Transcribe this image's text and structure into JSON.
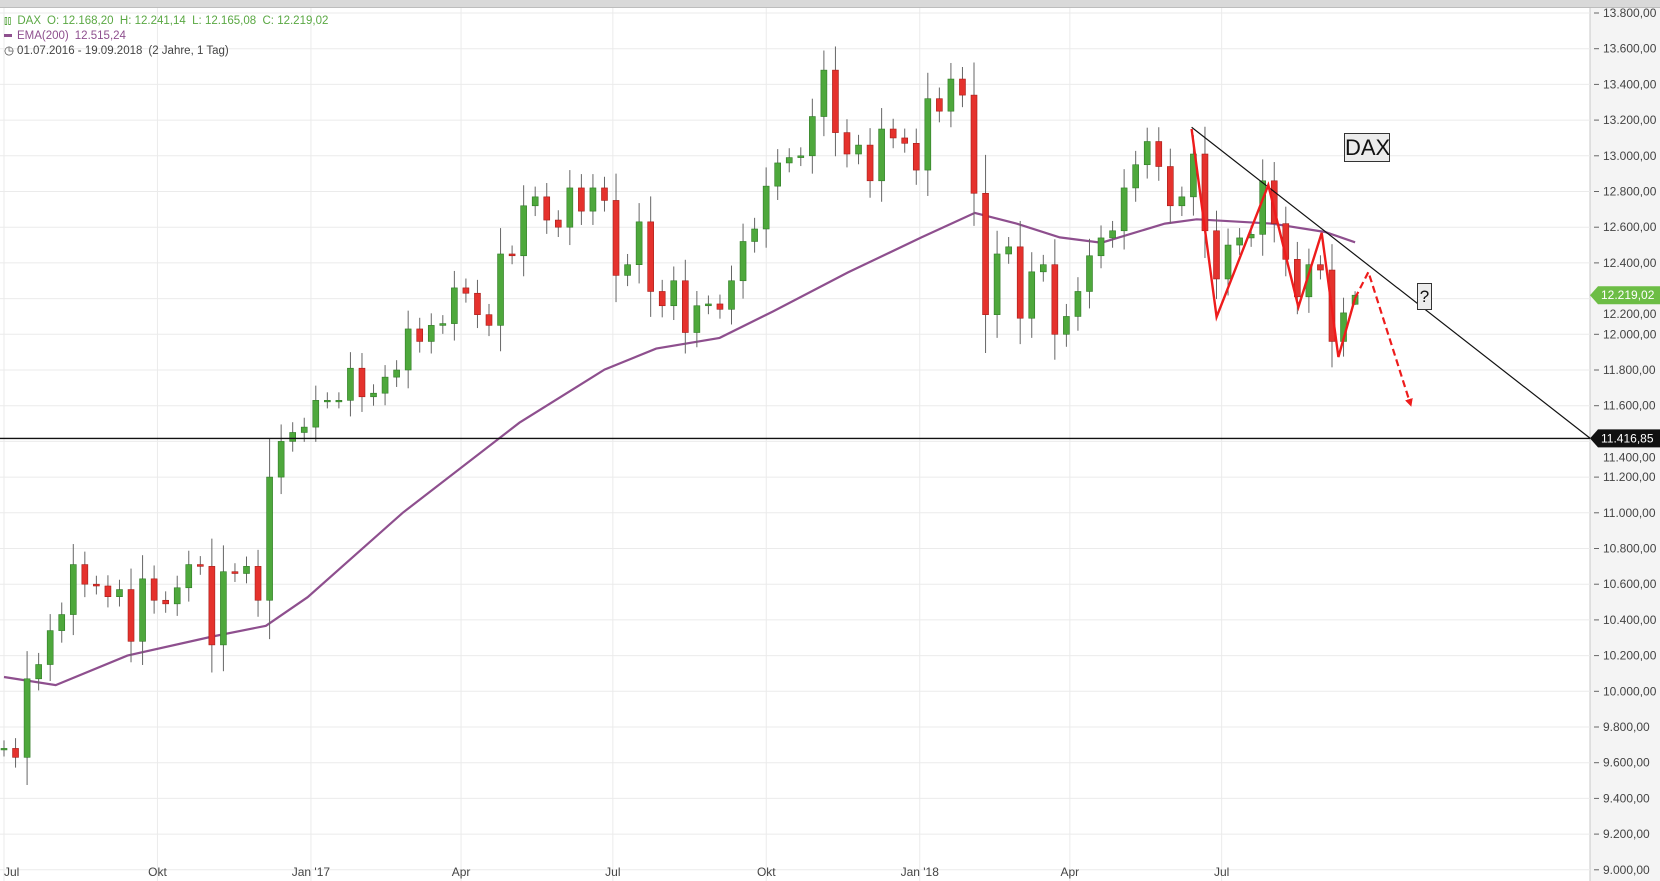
{
  "legend": {
    "instrument": "DAX",
    "ohlc": "O: 12.168,20  H: 12.241,14  L: 12.165,08  C: 12.219,02",
    "ema_label": "EMA(200)",
    "ema_value": "12.515,24",
    "range": "01.07.2016 - 19.09.2018",
    "range_note": "(2 Jahre, 1 Tag)"
  },
  "annotations": {
    "title_box": "DAX",
    "question_box": "?"
  },
  "colors": {
    "up": "#4ea83c",
    "down": "#e5322d",
    "ema": "#8e4f8e",
    "pattern": "#ee1c1c",
    "trendline": "#111111",
    "last_price_tag": "#6cbd45",
    "level_tag": "#111111",
    "grid": "#ebebeb",
    "axis_panel": "#f4f4f4"
  },
  "chart_data": {
    "type": "candlestick",
    "title": "DAX",
    "period_start": "2016-07-01",
    "period_end": "2018-09-19",
    "ylim": [
      9000,
      13800
    ],
    "grid": true,
    "y_ticks": [
      "13.800,00",
      "13.600,00",
      "13.400,00",
      "13.200,00",
      "13.000,00",
      "12.800,00",
      "12.600,00",
      "12.400,00",
      "12.200,00",
      "12.000,00",
      "11.800,00",
      "11.600,00",
      "11.400,00",
      "11.200,00",
      "11.000,00",
      "10.800,00",
      "10.600,00",
      "10.400,00",
      "10.200,00",
      "10.000,00",
      "9.800,00",
      "9.600,00",
      "9.400,00",
      "9.200,00",
      "9.000,00"
    ],
    "x_ticks": [
      {
        "label": "Jul",
        "date": "2016-07-01"
      },
      {
        "label": "Okt",
        "date": "2016-10-01"
      },
      {
        "label": "Jan '17",
        "date": "2017-01-01"
      },
      {
        "label": "Apr",
        "date": "2017-04-01"
      },
      {
        "label": "Jul",
        "date": "2017-07-01"
      },
      {
        "label": "Okt",
        "date": "2017-10-01"
      },
      {
        "label": "Jan '18",
        "date": "2018-01-01"
      },
      {
        "label": "Apr",
        "date": "2018-04-01"
      },
      {
        "label": "Jul",
        "date": "2018-07-01"
      }
    ],
    "first_open": 9680,
    "closes": [
      9680,
      9630,
      10070,
      10150,
      10340,
      10430,
      10710,
      10600,
      10590,
      10530,
      10570,
      10280,
      10630,
      10510,
      10490,
      10580,
      10710,
      10700,
      10260,
      10670,
      10660,
      10700,
      10510,
      11200,
      11400,
      11450,
      11480,
      11630,
      11630,
      11630,
      11810,
      11650,
      11670,
      11760,
      11800,
      12030,
      11960,
      12050,
      12060,
      12260,
      12230,
      12110,
      12050,
      12450,
      12440,
      12720,
      12770,
      12640,
      12600,
      12820,
      12690,
      12820,
      12750,
      12330,
      12390,
      12630,
      12240,
      12160,
      12300,
      12010,
      12160,
      12170,
      12140,
      12300,
      12520,
      12590,
      12830,
      12960,
      12990,
      13000,
      13220,
      13480,
      13130,
      13010,
      13060,
      12860,
      13150,
      13100,
      13070,
      12920,
      13320,
      13250,
      13430,
      13340,
      12790,
      12110,
      12450,
      12490,
      12090,
      12350,
      12390,
      12000,
      12100,
      12240,
      12440,
      12540,
      12580,
      12820,
      12950,
      13080,
      12940,
      12720,
      12770,
      13010,
      12580,
      12310,
      12500,
      12540,
      12560,
      12860,
      12620,
      12420,
      12210,
      12390,
      12360,
      11960,
      12120,
      12219.02
    ],
    "last": {
      "open": 12168.2,
      "high": 12241.14,
      "low": 12165.08,
      "close": 12219.02
    },
    "ema200": {
      "name": "EMA(200)",
      "points": [
        [
          "2016-07-01",
          10080
        ],
        [
          "2016-08-01",
          10035
        ],
        [
          "2016-09-13",
          10200
        ],
        [
          "2016-11-03",
          10307
        ],
        [
          "2016-12-05",
          10367
        ],
        [
          "2016-12-30",
          10527
        ],
        [
          "2017-02-25",
          11000
        ],
        [
          "2017-05-06",
          11505
        ],
        [
          "2017-06-26",
          11802
        ],
        [
          "2017-07-27",
          11920
        ],
        [
          "2017-09-03",
          11980
        ],
        [
          "2017-10-05",
          12128
        ],
        [
          "2017-11-19",
          12347
        ],
        [
          "2018-01-02",
          12543
        ],
        [
          "2018-02-03",
          12680
        ],
        [
          "2018-02-28",
          12620
        ],
        [
          "2018-03-26",
          12543
        ],
        [
          "2018-04-20",
          12513
        ],
        [
          "2018-05-28",
          12620
        ],
        [
          "2018-06-16",
          12644
        ],
        [
          "2018-07-31",
          12620
        ],
        [
          "2018-09-01",
          12573
        ],
        [
          "2018-09-19",
          12515.24
        ]
      ]
    },
    "horizontal_level": {
      "value": 11416.85,
      "label": "11.416,85"
    },
    "last_price_label": "12.219,02",
    "trendline": [
      [
        "2018-06-13",
        13160
      ],
      [
        "2019-02-07",
        11416.85
      ]
    ],
    "pattern_zigzag": [
      [
        "2018-06-13",
        13150
      ],
      [
        "2018-06-28",
        12097
      ],
      [
        "2018-07-29",
        12836
      ],
      [
        "2018-08-16",
        12153
      ],
      [
        "2018-08-30",
        12568
      ],
      [
        "2018-09-09",
        11873
      ],
      [
        "2018-09-19",
        12203
      ]
    ],
    "projection_dashed": [
      [
        "2018-09-19",
        12203
      ],
      [
        "2018-09-27",
        12349
      ],
      [
        "2018-10-22",
        11615
      ]
    ]
  }
}
